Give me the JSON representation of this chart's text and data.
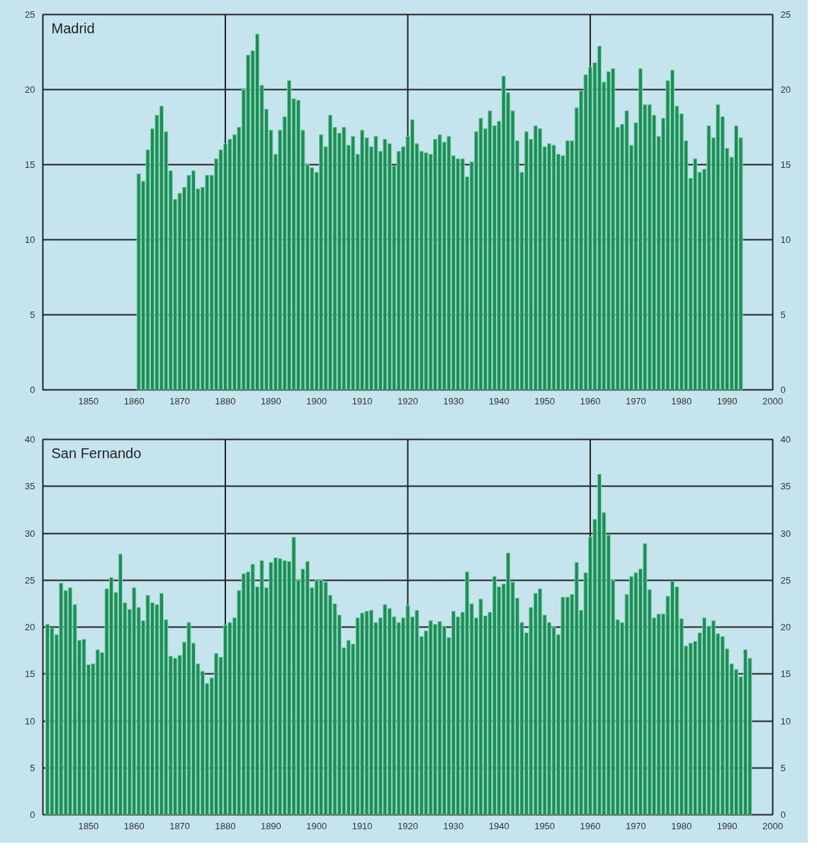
{
  "chart_data": [
    {
      "type": "bar",
      "title": "Madrid",
      "color": "#1f8a5b",
      "grid": "y",
      "x": [
        1861,
        1862,
        1863,
        1864,
        1865,
        1866,
        1867,
        1868,
        1869,
        1870,
        1871,
        1872,
        1873,
        1874,
        1875,
        1876,
        1877,
        1878,
        1879,
        1880,
        1881,
        1882,
        1883,
        1884,
        1885,
        1886,
        1887,
        1888,
        1889,
        1890,
        1891,
        1892,
        1893,
        1894,
        1895,
        1896,
        1897,
        1898,
        1899,
        1900,
        1901,
        1902,
        1903,
        1904,
        1905,
        1906,
        1907,
        1908,
        1909,
        1910,
        1911,
        1912,
        1913,
        1914,
        1915,
        1916,
        1917,
        1918,
        1919,
        1920,
        1921,
        1922,
        1923,
        1924,
        1925,
        1926,
        1927,
        1928,
        1929,
        1930,
        1931,
        1932,
        1933,
        1934,
        1935,
        1936,
        1937,
        1938,
        1939,
        1940,
        1941,
        1942,
        1943,
        1944,
        1945,
        1946,
        1947,
        1948,
        1949,
        1950,
        1951,
        1952,
        1953,
        1954,
        1955,
        1956,
        1957,
        1958,
        1959,
        1960,
        1961,
        1962,
        1963,
        1964,
        1965,
        1966,
        1967,
        1968,
        1969,
        1970,
        1971,
        1972,
        1973,
        1974,
        1975,
        1976,
        1977,
        1978,
        1979,
        1980,
        1981,
        1982,
        1983,
        1984,
        1985,
        1986,
        1987,
        1988,
        1989,
        1990,
        1991,
        1992,
        1993
      ],
      "values": [
        14.4,
        13.9,
        16.0,
        17.4,
        18.3,
        18.9,
        17.2,
        14.6,
        12.7,
        13.1,
        13.5,
        14.3,
        14.6,
        13.4,
        13.5,
        14.3,
        14.3,
        15.4,
        16.0,
        16.4,
        16.7,
        17.0,
        17.5,
        20.0,
        22.3,
        22.6,
        23.7,
        20.3,
        18.7,
        17.3,
        15.7,
        17.3,
        18.2,
        20.6,
        19.4,
        19.3,
        17.3,
        15.0,
        14.8,
        14.5,
        17.0,
        16.2,
        18.3,
        17.5,
        17.1,
        17.5,
        16.3,
        16.9,
        15.7,
        17.3,
        16.8,
        16.2,
        16.9,
        15.9,
        16.7,
        16.4,
        14.9,
        15.9,
        16.2,
        16.9,
        18.0,
        16.4,
        15.9,
        15.8,
        15.7,
        16.7,
        17.0,
        16.5,
        16.9,
        15.6,
        15.4,
        15.4,
        14.2,
        15.2,
        17.2,
        18.1,
        17.4,
        18.6,
        17.6,
        17.9,
        20.9,
        19.8,
        18.6,
        16.6,
        14.5,
        17.2,
        16.7,
        17.6,
        17.4,
        16.2,
        16.4,
        16.3,
        15.7,
        15.6,
        16.6,
        16.6,
        18.8,
        19.9,
        21.0,
        21.5,
        21.8,
        22.9,
        20.5,
        21.2,
        21.4,
        17.5,
        17.7,
        18.6,
        16.3,
        17.8,
        21.4,
        19.0,
        19.0,
        18.3,
        16.9,
        18.1,
        20.6,
        21.3,
        18.9,
        18.4,
        16.6,
        14.1,
        15.4,
        14.5,
        14.7,
        17.6,
        16.8,
        19.0,
        18.2,
        16.1,
        15.5,
        17.6,
        16.8
      ],
      "xlim": [
        1840,
        2000
      ],
      "xticks": [
        1850,
        1860,
        1870,
        1880,
        1890,
        1900,
        1910,
        1920,
        1930,
        1940,
        1950,
        1960,
        1970,
        1980,
        1990,
        2000
      ],
      "ylim": [
        0,
        25
      ],
      "yticks": [
        0,
        5,
        10,
        15,
        20,
        25
      ],
      "y2lim": [
        0,
        25
      ],
      "y2ticks": [
        0,
        5,
        10,
        15,
        20,
        25
      ],
      "ref_lines": [
        {
          "axis": "x",
          "value": 1880,
          "color": "#222222"
        },
        {
          "axis": "x",
          "value": 1920,
          "color": "#222222"
        },
        {
          "axis": "x",
          "value": 1960,
          "color": "#222222"
        }
      ]
    },
    {
      "type": "bar",
      "title": "San Fernando",
      "color": "#1f8a5b",
      "grid": "y",
      "x": [
        1841,
        1842,
        1843,
        1844,
        1845,
        1846,
        1847,
        1848,
        1849,
        1850,
        1851,
        1852,
        1853,
        1854,
        1855,
        1856,
        1857,
        1858,
        1859,
        1860,
        1861,
        1862,
        1863,
        1864,
        1865,
        1866,
        1867,
        1868,
        1869,
        1870,
        1871,
        1872,
        1873,
        1874,
        1875,
        1876,
        1877,
        1878,
        1879,
        1880,
        1881,
        1882,
        1883,
        1884,
        1885,
        1886,
        1887,
        1888,
        1889,
        1890,
        1891,
        1892,
        1893,
        1894,
        1895,
        1896,
        1897,
        1898,
        1899,
        1900,
        1901,
        1902,
        1903,
        1904,
        1905,
        1906,
        1907,
        1908,
        1909,
        1910,
        1911,
        1912,
        1913,
        1914,
        1915,
        1916,
        1917,
        1918,
        1919,
        1920,
        1921,
        1922,
        1923,
        1924,
        1925,
        1926,
        1927,
        1928,
        1929,
        1930,
        1931,
        1932,
        1933,
        1934,
        1935,
        1936,
        1937,
        1938,
        1939,
        1940,
        1941,
        1942,
        1943,
        1944,
        1945,
        1946,
        1947,
        1948,
        1949,
        1950,
        1951,
        1952,
        1953,
        1954,
        1955,
        1956,
        1957,
        1958,
        1959,
        1960,
        1961,
        1962,
        1963,
        1964,
        1965,
        1966,
        1967,
        1968,
        1969,
        1970,
        1971,
        1972,
        1973,
        1974,
        1975,
        1976,
        1977,
        1978,
        1979,
        1980,
        1981,
        1982,
        1983,
        1984,
        1985,
        1986,
        1987,
        1988,
        1989,
        1990,
        1991,
        1992,
        1993,
        1994,
        1995
      ],
      "values": [
        20.3,
        19.9,
        19.2,
        24.7,
        23.9,
        24.2,
        22.4,
        18.6,
        18.7,
        16.0,
        16.1,
        17.6,
        17.3,
        24.1,
        25.3,
        23.7,
        27.8,
        22.6,
        21.9,
        24.2,
        22.1,
        20.7,
        23.4,
        22.6,
        22.4,
        23.6,
        20.8,
        16.9,
        16.7,
        17.0,
        18.4,
        20.5,
        18.3,
        16.1,
        15.3,
        14.0,
        14.6,
        17.2,
        16.8,
        20.2,
        20.5,
        21.0,
        23.9,
        25.7,
        25.9,
        26.7,
        24.3,
        27.1,
        24.2,
        26.9,
        27.4,
        27.3,
        27.1,
        27.0,
        29.6,
        25.0,
        26.2,
        27.0,
        24.2,
        25.0,
        25.0,
        24.8,
        23.4,
        22.5,
        21.3,
        17.8,
        18.6,
        18.2,
        21.0,
        21.5,
        21.7,
        21.8,
        20.5,
        21.0,
        22.4,
        22.0,
        21.1,
        20.5,
        21.0,
        22.3,
        21.1,
        21.8,
        19.0,
        19.6,
        20.7,
        20.3,
        20.6,
        20.1,
        18.9,
        21.7,
        21.1,
        21.6,
        25.9,
        22.5,
        21.0,
        23.0,
        21.2,
        21.6,
        25.4,
        24.3,
        24.6,
        27.9,
        24.8,
        23.1,
        20.5,
        19.4,
        22.1,
        23.6,
        24.1,
        21.3,
        20.5,
        20.0,
        19.2,
        23.2,
        23.2,
        23.5,
        26.9,
        21.8,
        25.8,
        29.6,
        31.5,
        36.3,
        32.2,
        29.8,
        25.0,
        20.8,
        20.5,
        23.5,
        25.4,
        25.8,
        26.2,
        28.9,
        24.0,
        21.0,
        21.4,
        21.4,
        23.3,
        24.9,
        24.3,
        20.9,
        18.0,
        18.3,
        18.5,
        19.4,
        21.0,
        20.1,
        20.7,
        19.3,
        19.0,
        17.7,
        16.1,
        15.5,
        14.7,
        17.6,
        16.7
      ],
      "xlim": [
        1840,
        2000
      ],
      "xticks": [
        1850,
        1860,
        1870,
        1880,
        1890,
        1900,
        1910,
        1920,
        1930,
        1940,
        1950,
        1960,
        1970,
        1980,
        1990,
        2000
      ],
      "ylim": [
        0,
        40
      ],
      "yticks": [
        0,
        5,
        10,
        15,
        20,
        25,
        30,
        35,
        40
      ],
      "y2lim": [
        0,
        40
      ],
      "y2ticks": [
        0,
        5,
        10,
        15,
        20,
        25,
        30,
        35,
        40
      ],
      "ref_lines": [
        {
          "axis": "x",
          "value": 1880,
          "color": "#222222"
        },
        {
          "axis": "x",
          "value": 1920,
          "color": "#222222"
        },
        {
          "axis": "x",
          "value": 1960,
          "color": "#222222"
        }
      ]
    }
  ]
}
